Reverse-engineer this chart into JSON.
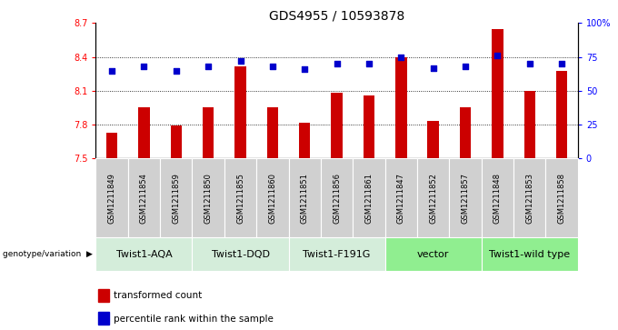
{
  "title": "GDS4955 / 10593878",
  "samples": [
    "GSM1211849",
    "GSM1211854",
    "GSM1211859",
    "GSM1211850",
    "GSM1211855",
    "GSM1211860",
    "GSM1211851",
    "GSM1211856",
    "GSM1211861",
    "GSM1211847",
    "GSM1211852",
    "GSM1211857",
    "GSM1211848",
    "GSM1211853",
    "GSM1211858"
  ],
  "bar_values": [
    7.73,
    7.95,
    7.79,
    7.95,
    8.32,
    7.95,
    7.82,
    8.08,
    8.06,
    8.4,
    7.83,
    7.95,
    8.65,
    8.1,
    8.28
  ],
  "percentile_values": [
    65,
    68,
    65,
    68,
    72,
    68,
    66,
    70,
    70,
    75,
    67,
    68,
    76,
    70,
    70
  ],
  "groups": [
    {
      "label": "Twist1-AQA",
      "start": 0,
      "end": 3,
      "color": "#d4edda"
    },
    {
      "label": "Twist1-DQD",
      "start": 3,
      "end": 6,
      "color": "#d4edda"
    },
    {
      "label": "Twist1-F191G",
      "start": 6,
      "end": 9,
      "color": "#d4edda"
    },
    {
      "label": "vector",
      "start": 9,
      "end": 12,
      "color": "#90ee90"
    },
    {
      "label": "Twist1-wild type",
      "start": 12,
      "end": 15,
      "color": "#90ee90"
    }
  ],
  "ylim_left": [
    7.5,
    8.7
  ],
  "ylim_right": [
    0,
    100
  ],
  "bar_color": "#cc0000",
  "dot_color": "#0000cc",
  "bar_bottom": 7.5,
  "legend_bar_label": "transformed count",
  "legend_dot_label": "percentile rank within the sample",
  "group_row_label": "genotype/variation",
  "title_fontsize": 10,
  "tick_fontsize": 7,
  "sample_fontsize": 6,
  "group_fontsize": 8,
  "legend_fontsize": 7.5,
  "bar_width": 0.35,
  "dot_size": 14
}
